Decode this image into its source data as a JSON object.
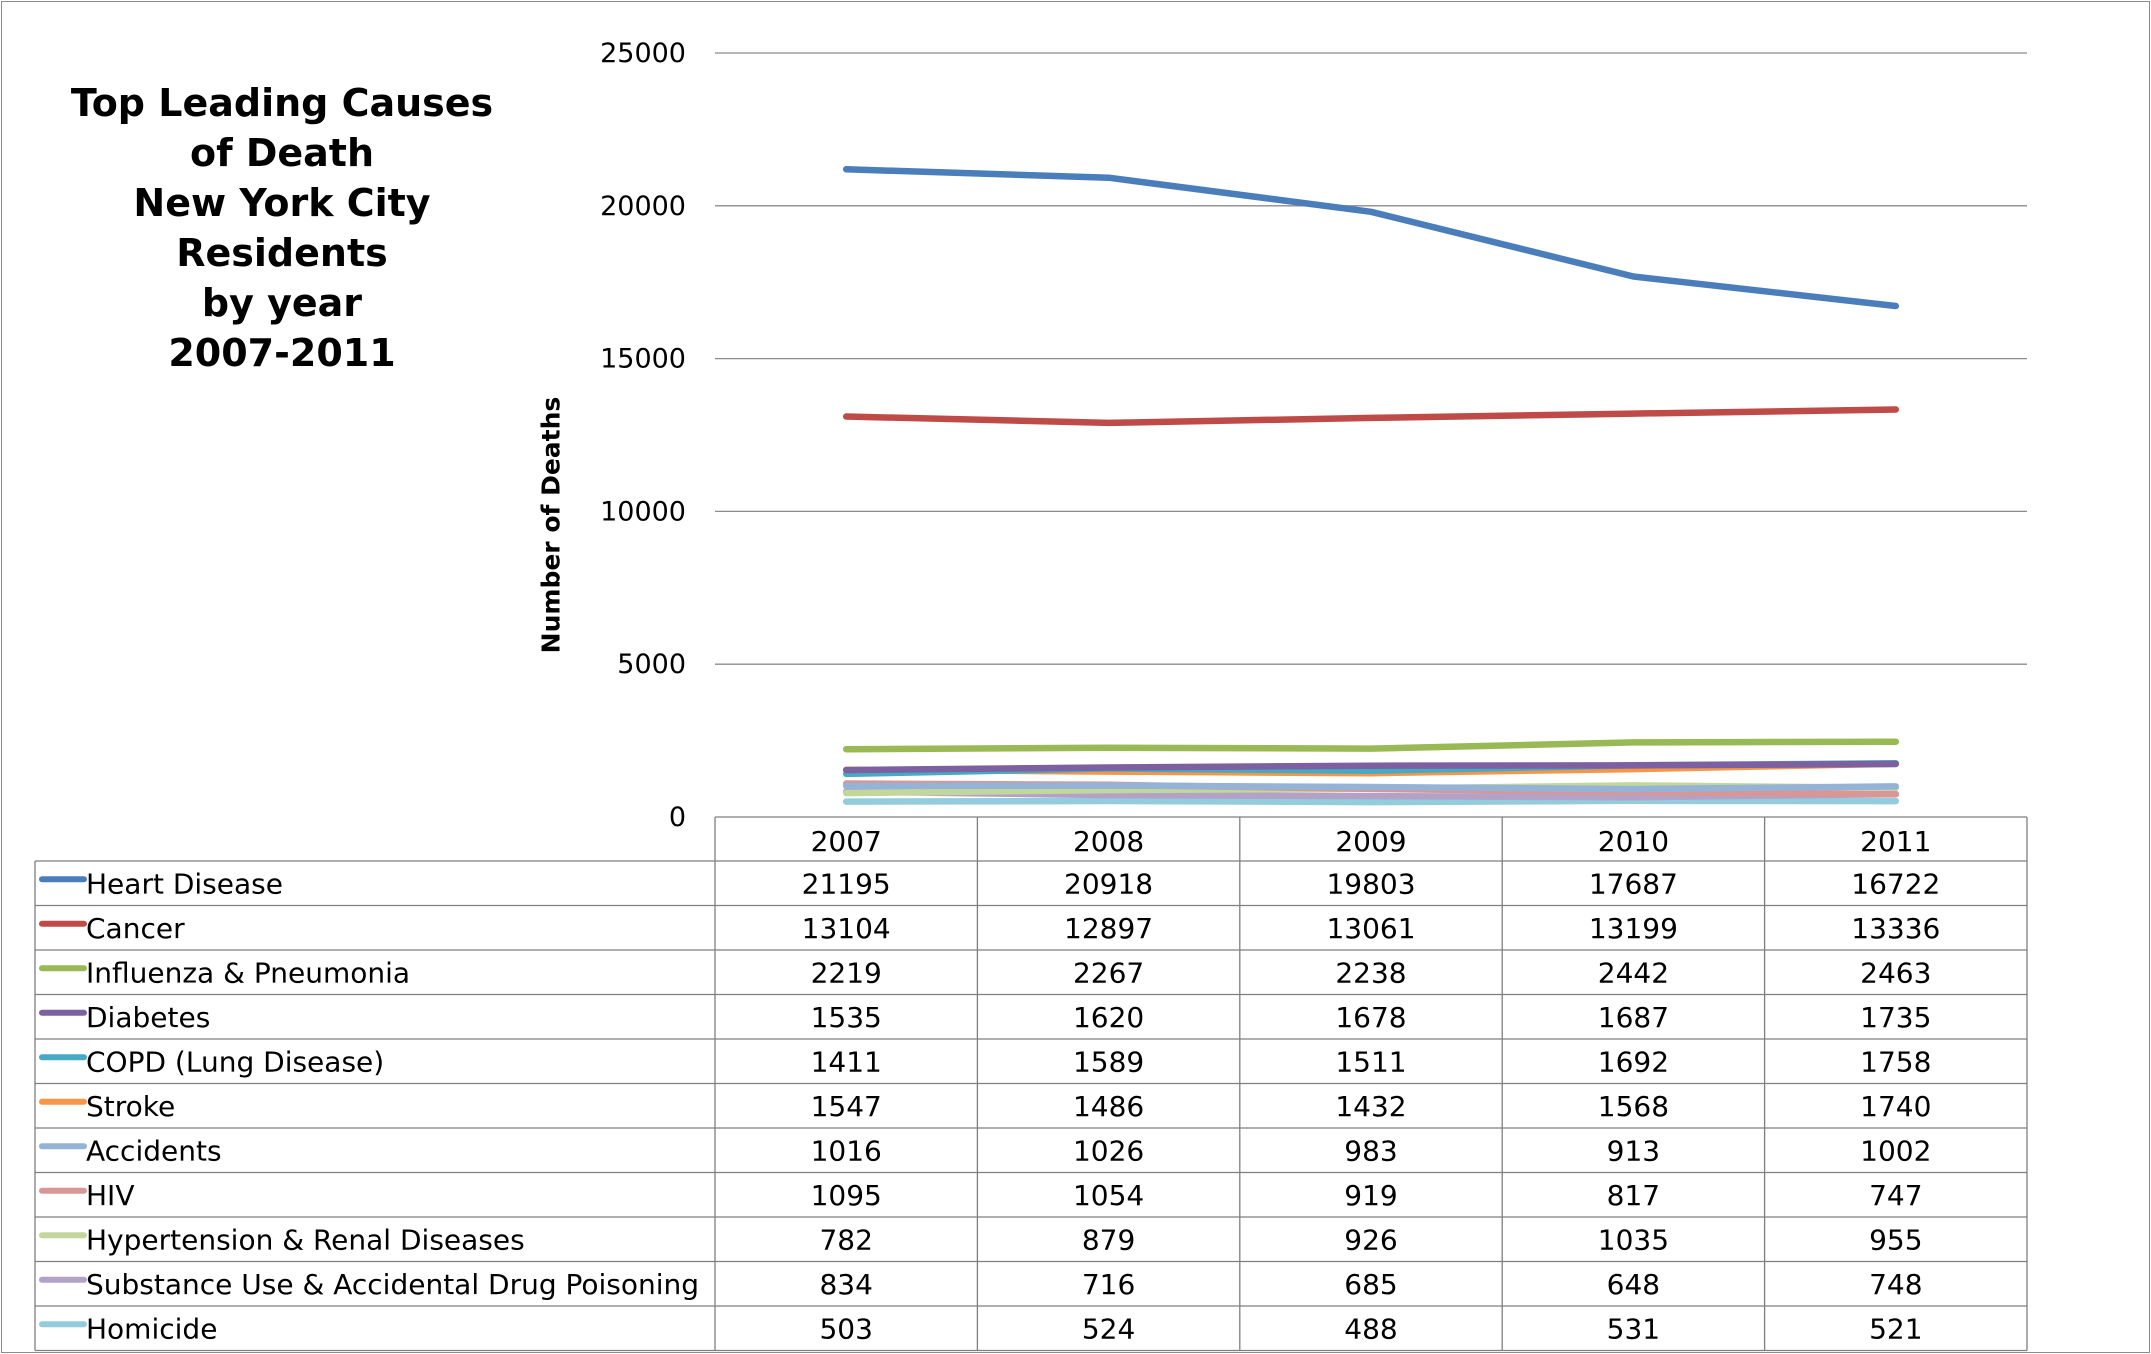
{
  "chart_data": {
    "type": "line",
    "title_lines": [
      "Top Leading Causes",
      "of Death",
      "New York City",
      "Residents",
      "by year",
      "2007-2011"
    ],
    "ylabel": "Number of Deaths",
    "ylim": [
      0,
      25000
    ],
    "yticks": [
      "0",
      "5000",
      "10000",
      "15000",
      "20000",
      "25000"
    ],
    "categories": [
      "2007",
      "2008",
      "2009",
      "2010",
      "2011"
    ],
    "grid": true,
    "legend": "data-table",
    "series": [
      {
        "name": "Heart Disease",
        "color": "#4a7ebb",
        "values": [
          21195,
          20918,
          19803,
          17687,
          16722
        ]
      },
      {
        "name": "Cancer",
        "color": "#be4b48",
        "values": [
          13104,
          12897,
          13061,
          13199,
          13336
        ]
      },
      {
        "name": "Influenza & Pneumonia",
        "color": "#98b954",
        "values": [
          2219,
          2267,
          2238,
          2442,
          2463
        ]
      },
      {
        "name": "Diabetes",
        "color": "#7d60a0",
        "values": [
          1535,
          1620,
          1678,
          1687,
          1735
        ]
      },
      {
        "name": "COPD (Lung Disease)",
        "color": "#46aac5",
        "values": [
          1411,
          1589,
          1511,
          1692,
          1758
        ]
      },
      {
        "name": "Stroke",
        "color": "#f79646",
        "values": [
          1547,
          1486,
          1432,
          1568,
          1740
        ]
      },
      {
        "name": "Accidents",
        "color": "#95b3d7",
        "values": [
          1016,
          1026,
          983,
          913,
          1002
        ]
      },
      {
        "name": "HIV",
        "color": "#d99694",
        "values": [
          1095,
          1054,
          919,
          817,
          747
        ]
      },
      {
        "name": "Hypertension & Renal Diseases",
        "color": "#c3d69b",
        "values": [
          782,
          879,
          926,
          1035,
          955
        ]
      },
      {
        "name": "Substance Use & Accidental Drug Poisoning",
        "color": "#b2a2c7",
        "values": [
          834,
          716,
          685,
          648,
          748
        ]
      },
      {
        "name": "Homicide",
        "color": "#93cddd",
        "values": [
          503,
          524,
          488,
          531,
          521
        ]
      }
    ]
  }
}
